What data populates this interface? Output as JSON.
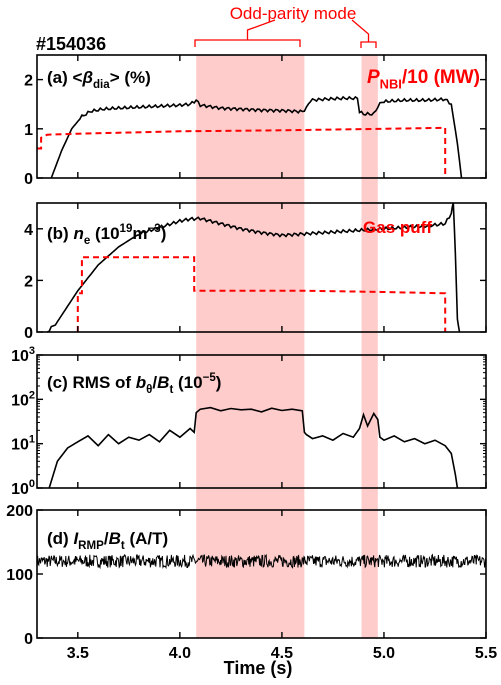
{
  "shot_label": "#154036",
  "annotation": {
    "text": "Odd-parity mode",
    "color": "#ff0000"
  },
  "highlight_regions": [
    {
      "x0": 4.08,
      "x1": 4.61
    },
    {
      "x0": 4.89,
      "x1": 4.97
    }
  ],
  "highlight_color": "#ffcccc",
  "chart_data": [
    {
      "id": "a",
      "type": "line",
      "title_parts": [
        {
          "t": "(a) <"
        },
        {
          "t": "β",
          "italic": true
        },
        {
          "t": "dia",
          "sub": true
        },
        {
          "t": "> (%)"
        }
      ],
      "red_label_parts": [
        {
          "t": "P",
          "italic": true
        },
        {
          "t": "NBI",
          "sub": true
        },
        {
          "t": "/10 (MW)"
        }
      ],
      "xlim": [
        3.3,
        5.5
      ],
      "ylim": [
        0,
        2.5
      ],
      "yscale": "linear",
      "yticks": [
        0,
        1,
        2
      ],
      "ytick_labels": [
        "0",
        "1",
        "2"
      ],
      "series": [
        {
          "color": "#000000",
          "dash": false,
          "smooth": true,
          "x": [
            3.3,
            3.37,
            3.42,
            3.47,
            3.52,
            3.56,
            3.62,
            3.7,
            3.8,
            3.9,
            4.0,
            4.05,
            4.08,
            4.1,
            4.2,
            4.3,
            4.4,
            4.5,
            4.6,
            4.62,
            4.64,
            4.7,
            4.8,
            4.87,
            4.88,
            4.9,
            4.95,
            4.97,
            4.99,
            5.1,
            5.2,
            5.3,
            5.33,
            5.36,
            5.38
          ],
          "y": [
            null,
            0.0,
            0.55,
            1.0,
            1.25,
            1.35,
            1.4,
            1.42,
            1.44,
            1.46,
            1.48,
            1.5,
            1.58,
            1.48,
            1.42,
            1.4,
            1.38,
            1.37,
            1.35,
            1.42,
            1.58,
            1.6,
            1.62,
            1.62,
            1.35,
            1.3,
            1.3,
            1.45,
            1.55,
            1.58,
            1.58,
            1.6,
            1.5,
            0.7,
            0.0
          ]
        },
        {
          "color": "#ff0000",
          "dash": true,
          "smooth": false,
          "x": [
            3.3,
            3.32,
            3.32,
            3.35,
            3.5,
            4.0,
            4.5,
            5.0,
            5.3,
            5.3
          ],
          "y": [
            0.6,
            0.6,
            0.82,
            0.88,
            0.9,
            0.95,
            0.97,
            1.0,
            1.02,
            0.0
          ]
        }
      ]
    },
    {
      "id": "b",
      "type": "line",
      "title_parts": [
        {
          "t": "(b) "
        },
        {
          "t": "n",
          "italic": true
        },
        {
          "t": "e",
          "sub": true
        },
        {
          "t": " (10"
        },
        {
          "t": "19",
          "sup": true
        },
        {
          "t": "m"
        },
        {
          "t": "−3",
          "sup": true
        },
        {
          "t": ")"
        }
      ],
      "red_label_parts": [
        {
          "t": "Gas puff"
        }
      ],
      "xlim": [
        3.3,
        5.5
      ],
      "ylim": [
        0,
        5
      ],
      "yscale": "linear",
      "yticks": [
        0,
        2,
        4
      ],
      "ytick_labels": [
        "0",
        "2",
        "4"
      ],
      "series": [
        {
          "color": "#000000",
          "dash": false,
          "smooth": true,
          "x": [
            3.3,
            3.35,
            3.4,
            3.45,
            3.5,
            3.6,
            3.7,
            3.8,
            3.9,
            4.0,
            4.05,
            4.1,
            4.2,
            4.3,
            4.4,
            4.5,
            4.6,
            4.7,
            4.8,
            4.9,
            5.0,
            5.1,
            5.2,
            5.3,
            5.33,
            5.34,
            5.35,
            5.36,
            5.37
          ],
          "y": [
            null,
            0.0,
            0.4,
            1.0,
            1.6,
            2.6,
            3.3,
            3.8,
            4.05,
            4.3,
            4.38,
            4.4,
            4.2,
            4.0,
            3.85,
            3.75,
            3.8,
            3.85,
            3.9,
            3.95,
            4.0,
            4.05,
            4.1,
            4.2,
            4.6,
            5.0,
            3.0,
            0.5,
            0.0
          ]
        },
        {
          "color": "#ff0000",
          "dash": true,
          "smooth": false,
          "x": [
            3.5,
            3.5,
            3.52,
            3.52,
            4.07,
            4.07,
            4.6,
            5.0,
            5.3,
            5.3
          ],
          "y": [
            0.0,
            1.5,
            1.5,
            2.9,
            2.9,
            1.6,
            1.6,
            1.55,
            1.5,
            0.0
          ]
        }
      ]
    },
    {
      "id": "c",
      "type": "line",
      "title_parts": [
        {
          "t": "(c) RMS of "
        },
        {
          "t": "b",
          "italic": true
        },
        {
          "t": "θ",
          "sub": true
        },
        {
          "t": "/"
        },
        {
          "t": "B",
          "italic": true
        },
        {
          "t": "t",
          "sub": true
        },
        {
          "t": " (10"
        },
        {
          "t": "−5",
          "sup": true
        },
        {
          "t": ")"
        }
      ],
      "xlim": [
        3.3,
        5.5
      ],
      "ylim": [
        1,
        1000
      ],
      "yscale": "log",
      "yticks": [
        1,
        10,
        100,
        1000
      ],
      "ytick_labels": [
        "10",
        "10",
        "10",
        "10"
      ],
      "ytick_exps": [
        "0",
        "1",
        "2",
        "3"
      ],
      "series": [
        {
          "color": "#000000",
          "dash": false,
          "smooth": false,
          "x": [
            3.3,
            3.36,
            3.4,
            3.45,
            3.5,
            3.55,
            3.6,
            3.65,
            3.7,
            3.75,
            3.8,
            3.85,
            3.9,
            3.95,
            4.0,
            4.05,
            4.07,
            4.08,
            4.1,
            4.15,
            4.2,
            4.25,
            4.3,
            4.35,
            4.4,
            4.45,
            4.5,
            4.55,
            4.6,
            4.61,
            4.62,
            4.65,
            4.7,
            4.75,
            4.8,
            4.85,
            4.88,
            4.9,
            4.92,
            4.95,
            4.97,
            4.98,
            5.0,
            5.05,
            5.1,
            5.15,
            5.2,
            5.25,
            5.3,
            5.33,
            5.35,
            5.36
          ],
          "y": [
            null,
            1.0,
            4.0,
            8.0,
            11.0,
            15.0,
            9.0,
            16.0,
            10.0,
            14.0,
            12.0,
            16.0,
            11.0,
            20.0,
            14.0,
            22.0,
            18.0,
            50.0,
            60.0,
            65.0,
            55.0,
            62.0,
            58.0,
            60.0,
            52.0,
            63.0,
            56.0,
            60.0,
            55.0,
            18.0,
            16.0,
            13.0,
            15.0,
            12.0,
            17.0,
            14.0,
            22.0,
            45.0,
            25.0,
            48.0,
            35.0,
            14.0,
            12.0,
            15.0,
            11.0,
            13.0,
            10.0,
            12.0,
            9.0,
            6.0,
            2.0,
            1.0
          ]
        }
      ]
    },
    {
      "id": "d",
      "type": "line",
      "title_parts": [
        {
          "t": "(d) "
        },
        {
          "t": "I",
          "italic": true
        },
        {
          "t": "RMP",
          "sub": true
        },
        {
          "t": "/"
        },
        {
          "t": "B",
          "italic": true
        },
        {
          "t": "t",
          "sub": true
        },
        {
          "t": " (A/T)"
        }
      ],
      "xlim": [
        3.3,
        5.5
      ],
      "ylim": [
        0,
        200
      ],
      "yscale": "linear",
      "yticks": [
        0,
        100,
        200
      ],
      "ytick_labels": [
        "0",
        "100",
        "200"
      ],
      "noise": {
        "x0": 3.3,
        "x1": 5.5,
        "mean": 120,
        "amp": 10
      },
      "series": []
    }
  ],
  "x_axis": {
    "label": "Time (s)",
    "ticks": [
      3.5,
      4.0,
      4.5,
      5.0,
      5.5
    ],
    "tick_labels": [
      "3.5",
      "4.0",
      "4.5",
      "5.0",
      "5.5"
    ]
  }
}
